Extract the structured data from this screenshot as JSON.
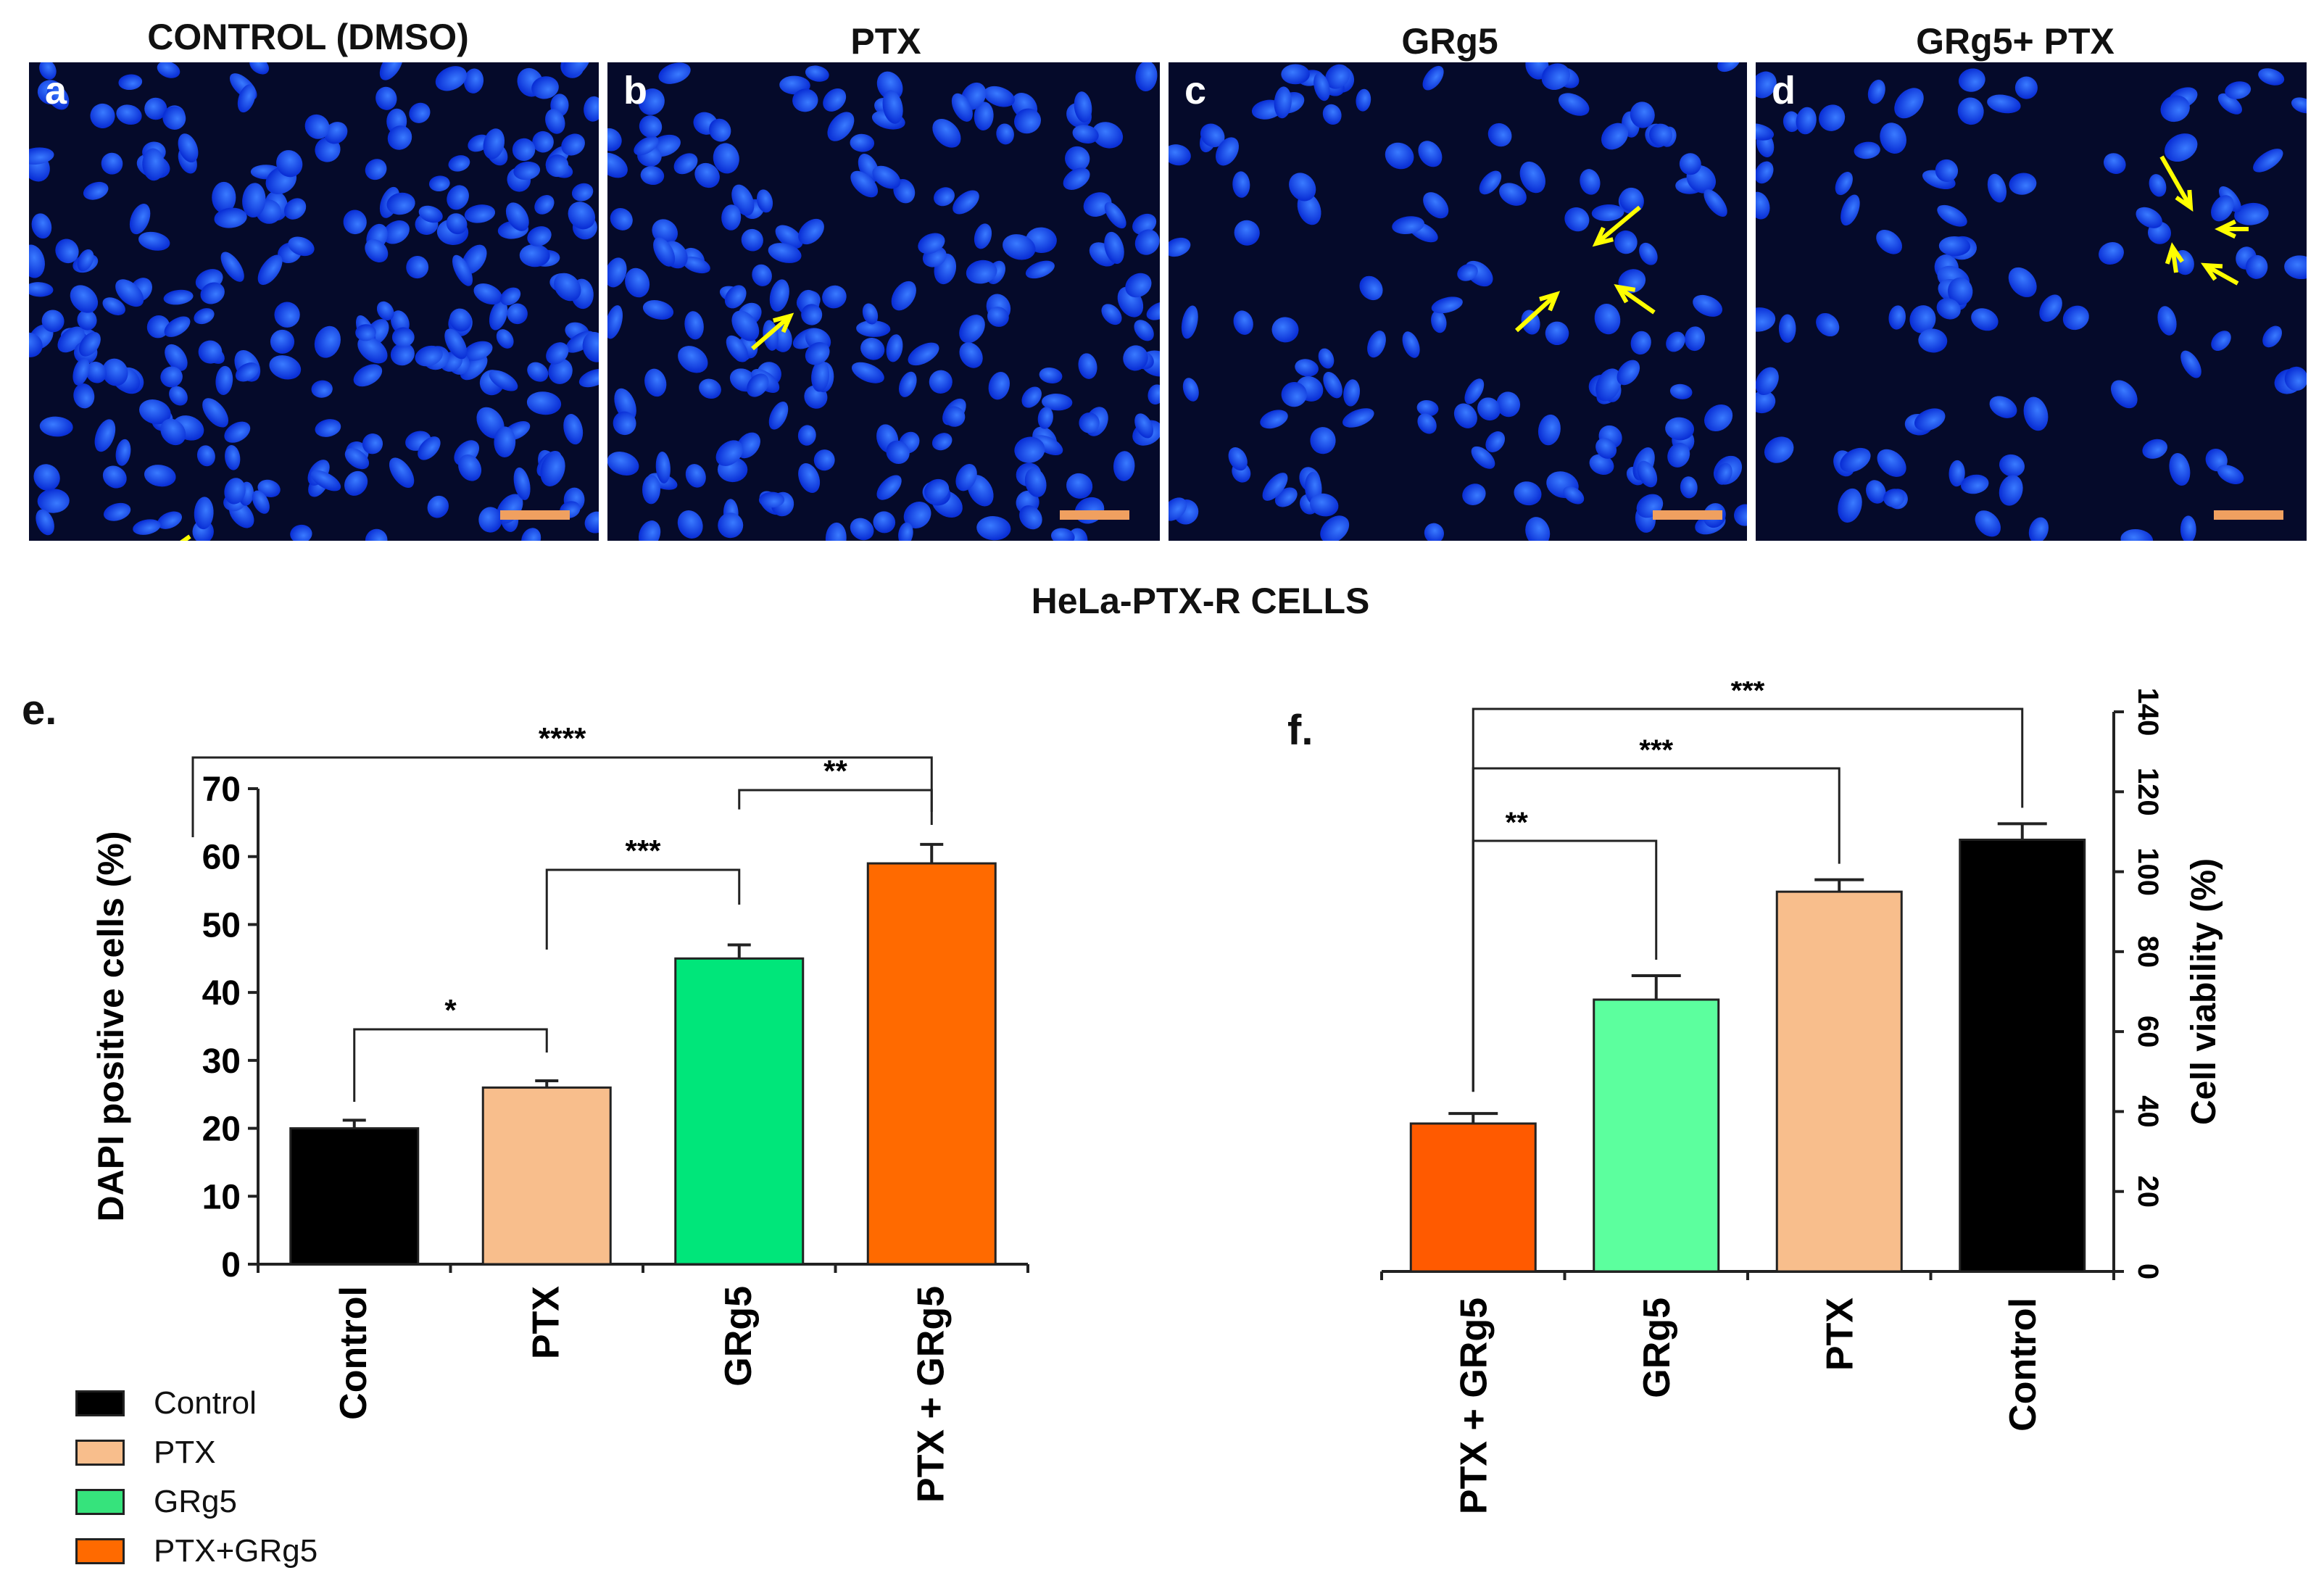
{
  "micrographs": [
    {
      "letter": "a",
      "title": "CONTROL (DMSO)",
      "seed": 11,
      "density": 230,
      "arrows": [
        [
          222,
          654,
          170,
          690
        ]
      ]
    },
    {
      "letter": "b",
      "title": "PTX",
      "seed": 23,
      "density": 190,
      "arrows": [
        [
          200,
          395,
          252,
          350
        ]
      ]
    },
    {
      "letter": "c",
      "title": "GRg5",
      "seed": 37,
      "density": 130,
      "arrows": [
        [
          650,
          200,
          590,
          250
        ],
        [
          480,
          370,
          535,
          320
        ],
        [
          670,
          345,
          620,
          310
        ]
      ]
    },
    {
      "letter": "d",
      "title": "GRg5+ PTX",
      "seed": 53,
      "density": 95,
      "arrows": [
        [
          560,
          130,
          600,
          200
        ],
        [
          680,
          230,
          640,
          230
        ],
        [
          580,
          290,
          575,
          255
        ],
        [
          665,
          305,
          620,
          280
        ]
      ]
    }
  ],
  "cells_caption": "HeLa-PTX-R CELLS",
  "panel_e_label": "e.",
  "panel_f_label": "f.",
  "legend": [
    {
      "label": "Control",
      "color": "#000000"
    },
    {
      "label": "PTX",
      "color": "#f8be8c"
    },
    {
      "label": "GRg5",
      "color": "#36e37c"
    },
    {
      "label": "PTX+GRg5",
      "color": "#ff6a00"
    }
  ],
  "chart_data": [
    {
      "type": "bar",
      "panel": "e",
      "categories": [
        "Control",
        "PTX",
        "GRg5",
        "PTX + GRg5"
      ],
      "values": [
        20,
        26,
        45,
        59
      ],
      "errors": [
        1.2,
        1.0,
        2.0,
        2.8
      ],
      "colors": [
        "#000000",
        "#f8be8c",
        "#00e67a",
        "#ff6a00"
      ],
      "title": "",
      "xlabel": "",
      "ylabel": "DAPI positive cells (%)",
      "ylim": [
        0,
        70
      ],
      "yticks": [
        0,
        10,
        20,
        30,
        40,
        50,
        60,
        70
      ],
      "grid": false,
      "significance": [
        {
          "from": 0,
          "to": 1,
          "label": "*"
        },
        {
          "from": 1,
          "to": 2,
          "label": "***"
        },
        {
          "from": 2,
          "to": 3,
          "label": "**"
        },
        {
          "from": 0,
          "to": 3,
          "label": "****"
        }
      ]
    },
    {
      "type": "bar",
      "panel": "f",
      "categories": [
        "PTX + GRg5",
        "GRg5",
        "PTX",
        "Control"
      ],
      "values": [
        37,
        68,
        95,
        108
      ],
      "errors": [
        2.5,
        6.0,
        3.0,
        4.0
      ],
      "colors": [
        "#ff5a00",
        "#5cff9e",
        "#f8be8c",
        "#000000"
      ],
      "title": "",
      "xlabel": "",
      "ylabel": "Cell viability (%)",
      "ylim": [
        0,
        140
      ],
      "yticks": [
        0,
        20,
        40,
        60,
        80,
        100,
        120,
        140
      ],
      "grid": false,
      "axis_side": "right",
      "significance": [
        {
          "from": 0,
          "to": 1,
          "label": "**"
        },
        {
          "from": 0,
          "to": 2,
          "label": "***"
        },
        {
          "from": 0,
          "to": 3,
          "label": "***"
        }
      ]
    }
  ]
}
